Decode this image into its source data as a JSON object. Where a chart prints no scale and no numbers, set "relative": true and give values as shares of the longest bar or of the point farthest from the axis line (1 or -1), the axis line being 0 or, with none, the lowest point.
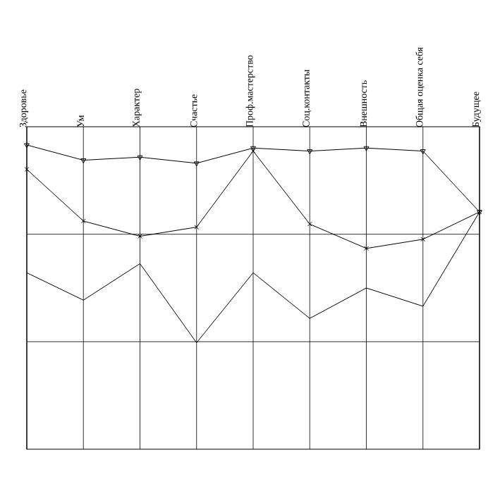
{
  "chart_data": {
    "type": "line",
    "relative": true,
    "grid": true,
    "categories": [
      "Здоровье",
      "Ум",
      "Характер",
      "Счастье",
      "Проф.мастерство",
      "Соц.контакты",
      "Внешность",
      "Общая оценка себя",
      "Будущее"
    ],
    "series": [
      {
        "color": "#000000",
        "marker": "triangle",
        "values": [
          1.0,
          0.95,
          0.96,
          0.94,
          0.99,
          0.98,
          0.99,
          0.98,
          0.78
        ]
      },
      {
        "color": "#000000",
        "marker": "cross",
        "values": [
          0.92,
          0.75,
          0.7,
          0.73,
          0.98,
          0.74,
          0.66,
          0.69,
          0.78
        ]
      },
      {
        "color": "#000000",
        "marker": "none",
        "values": [
          0.58,
          0.49,
          0.61,
          0.35,
          0.58,
          0.43,
          0.53,
          0.47,
          0.78
        ]
      }
    ]
  }
}
